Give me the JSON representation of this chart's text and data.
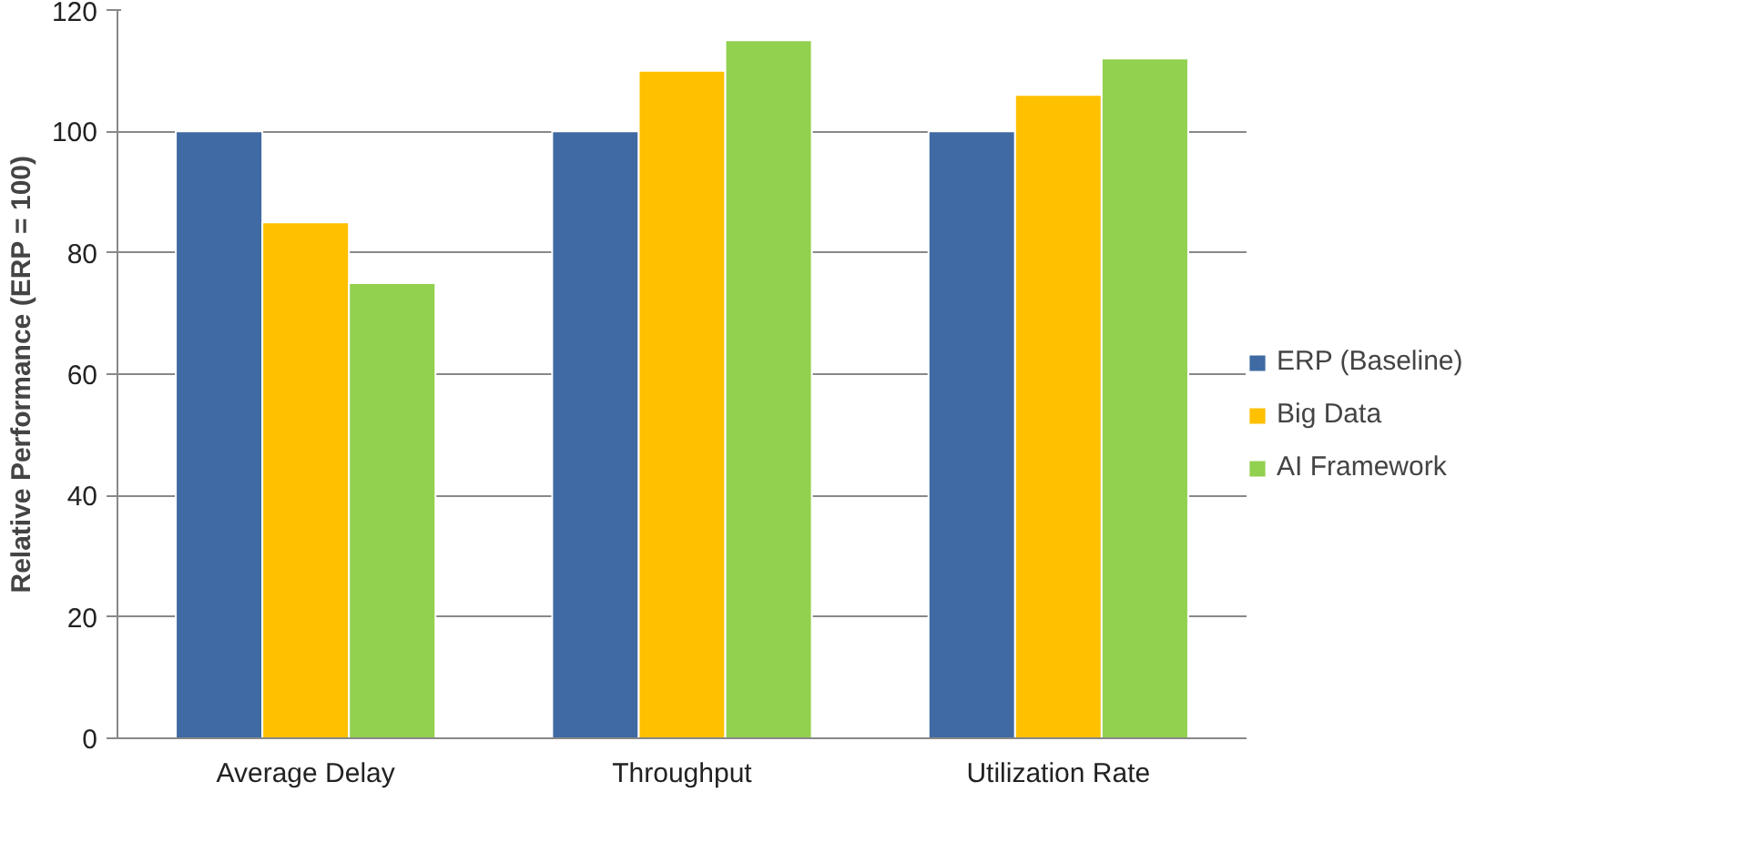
{
  "chart_data": {
    "type": "bar",
    "ylabel": "Relative Performance (ERP = 100)",
    "categories": [
      "Average Delay",
      "Throughput",
      "Utilization Rate"
    ],
    "series": [
      {
        "name": "ERP (Baseline)",
        "color": "#3f6aa3",
        "values": [
          100,
          100,
          100
        ]
      },
      {
        "name": "Big Data",
        "color": "#ffc000",
        "values": [
          85,
          110,
          106
        ]
      },
      {
        "name": "AI Framework",
        "color": "#92d050",
        "values": [
          75,
          115,
          112
        ]
      }
    ],
    "ylim": [
      0,
      120
    ],
    "yticks": [
      0,
      20,
      40,
      60,
      80,
      100,
      120
    ],
    "grid": "y",
    "legend": "right"
  }
}
